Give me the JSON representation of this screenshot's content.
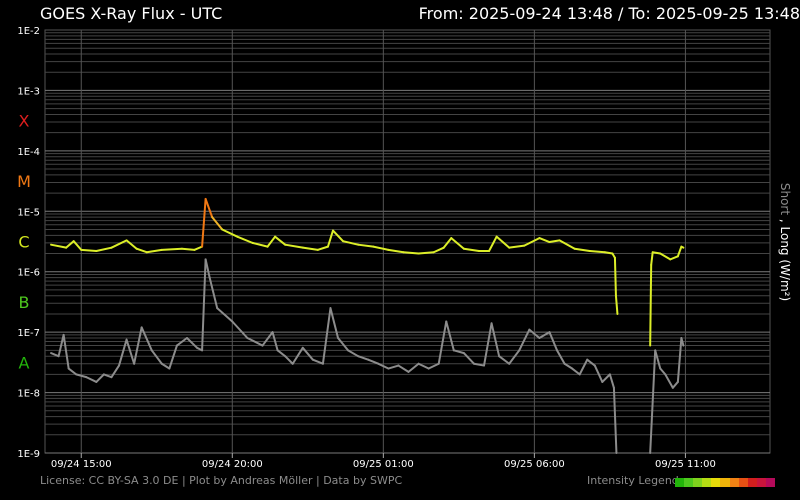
{
  "header": {
    "title": "GOES X-Ray Flux - UTC",
    "range": "From: 2025-09-24 13:48  /  To: 2025-09-25 13:48"
  },
  "footer": {
    "credits": "License: CC BY-SA 3.0 DE | Plot by Andreas Möller | Data by SWPC",
    "legend_label": "Intensity Legend",
    "legend_colors": [
      "#22b40a",
      "#4ec81e",
      "#7fd21e",
      "#b4dc14",
      "#e6dc0a",
      "#f0b40a",
      "#f08214",
      "#e65014",
      "#d21e1e",
      "#c8143c",
      "#b40a5a"
    ]
  },
  "chart_data": {
    "type": "line",
    "title": "GOES X-Ray Flux - UTC",
    "xlabel": "",
    "ylabel": "Short , Long (W/m²)",
    "ylabel_short": "Short",
    "ylabel_rest": " , Long (W/m²)",
    "yscale": "log",
    "ylim": [
      1e-09,
      0.01
    ],
    "xlim": [
      "2025-09-24 13:48",
      "2025-09-25 13:48"
    ],
    "grid": true,
    "y_ticks": [
      "1E-9",
      "1E-8",
      "1E-7",
      "1E-6",
      "1E-5",
      "1E-4",
      "1E-3",
      "1E-2"
    ],
    "x_ticks": [
      {
        "t": "2025-09-24 15:00",
        "label": "09/24 15:00"
      },
      {
        "t": "2025-09-24 20:00",
        "label": "09/24 20:00"
      },
      {
        "t": "2025-09-25 01:00",
        "label": "09/25 01:00"
      },
      {
        "t": "2025-09-25 06:00",
        "label": "09/25 06:00"
      },
      {
        "t": "2025-09-25 11:00",
        "label": "09/25 11:00"
      }
    ],
    "flare_classes": [
      {
        "label": "A",
        "color": "#22b40a",
        "decade": -7.5
      },
      {
        "label": "B",
        "color": "#4ec81e",
        "decade": -6.5
      },
      {
        "label": "C",
        "color": "#d2e61e",
        "decade": -5.5
      },
      {
        "label": "M",
        "color": "#f07814",
        "decade": -4.5
      },
      {
        "label": "X",
        "color": "#dc1e1e",
        "decade": -3.5
      }
    ],
    "series": [
      {
        "name": "Long",
        "color": "#e6f01e",
        "x": [
          "2025-09-24 14:00",
          "2025-09-24 14:30",
          "2025-09-24 14:45",
          "2025-09-24 15:00",
          "2025-09-24 15:30",
          "2025-09-24 16:00",
          "2025-09-24 16:30",
          "2025-09-24 16:50",
          "2025-09-24 17:10",
          "2025-09-24 17:40",
          "2025-09-24 18:20",
          "2025-09-24 18:45",
          "2025-09-24 19:00",
          "2025-09-24 19:07",
          "2025-09-24 19:20",
          "2025-09-24 19:40",
          "2025-09-24 20:10",
          "2025-09-24 20:40",
          "2025-09-24 21:10",
          "2025-09-24 21:25",
          "2025-09-24 21:45",
          "2025-09-24 22:20",
          "2025-09-24 22:50",
          "2025-09-24 23:10",
          "2025-09-24 23:20",
          "2025-09-24 23:40",
          "2025-09-25 00:10",
          "2025-09-25 00:40",
          "2025-09-25 01:10",
          "2025-09-25 01:40",
          "2025-09-25 02:10",
          "2025-09-25 02:40",
          "2025-09-25 03:00",
          "2025-09-25 03:15",
          "2025-09-25 03:40",
          "2025-09-25 04:10",
          "2025-09-25 04:30",
          "2025-09-25 04:45",
          "2025-09-25 05:10",
          "2025-09-25 05:40",
          "2025-09-25 06:10",
          "2025-09-25 06:30",
          "2025-09-25 06:50",
          "2025-09-25 07:20",
          "2025-09-25 07:50",
          "2025-09-25 08:20",
          "2025-09-25 08:35",
          "2025-09-25 08:40",
          "2025-09-25 08:42",
          "2025-09-25 08:45",
          "null",
          "2025-09-25 09:50",
          "2025-09-25 09:52",
          "2025-09-25 09:55",
          "2025-09-25 10:10",
          "2025-09-25 10:30",
          "2025-09-25 10:45",
          "2025-09-25 10:52",
          "2025-09-25 10:56"
        ],
        "y": [
          2.8e-06,
          2.5e-06,
          3.2e-06,
          2.3e-06,
          2.2e-06,
          2.5e-06,
          3.3e-06,
          2.4e-06,
          2.1e-06,
          2.3e-06,
          2.4e-06,
          2.3e-06,
          2.6e-06,
          1.6e-05,
          8e-06,
          5e-06,
          3.8e-06,
          3e-06,
          2.6e-06,
          3.8e-06,
          2.8e-06,
          2.5e-06,
          2.3e-06,
          2.6e-06,
          4.8e-06,
          3.2e-06,
          2.8e-06,
          2.6e-06,
          2.3e-06,
          2.1e-06,
          2e-06,
          2.1e-06,
          2.5e-06,
          3.6e-06,
          2.4e-06,
          2.2e-06,
          2.2e-06,
          3.8e-06,
          2.5e-06,
          2.7e-06,
          3.6e-06,
          3.1e-06,
          3.3e-06,
          2.4e-06,
          2.2e-06,
          2.1e-06,
          2e-06,
          1.7e-06,
          4e-07,
          2e-07,
          null,
          6e-08,
          1.3e-06,
          2.1e-06,
          2e-06,
          1.6e-06,
          1.8e-06,
          2.6e-06,
          2.5e-06
        ]
      },
      {
        "name": "Short",
        "color": "#8c8c8c",
        "x": [
          "2025-09-24 14:00",
          "2025-09-24 14:15",
          "2025-09-24 14:25",
          "2025-09-24 14:35",
          "2025-09-24 14:50",
          "2025-09-24 15:10",
          "2025-09-24 15:30",
          "2025-09-24 15:45",
          "2025-09-24 16:00",
          "2025-09-24 16:15",
          "2025-09-24 16:30",
          "2025-09-24 16:45",
          "2025-09-24 17:00",
          "2025-09-24 17:20",
          "2025-09-24 17:40",
          "2025-09-24 17:55",
          "2025-09-24 18:10",
          "2025-09-24 18:30",
          "2025-09-24 18:50",
          "2025-09-24 19:00",
          "2025-09-24 19:07",
          "2025-09-24 19:15",
          "2025-09-24 19:30",
          "2025-09-24 20:00",
          "2025-09-24 20:30",
          "2025-09-24 21:00",
          "2025-09-24 21:20",
          "2025-09-24 21:30",
          "2025-09-24 21:45",
          "2025-09-24 22:00",
          "2025-09-24 22:20",
          "2025-09-24 22:40",
          "2025-09-24 23:00",
          "2025-09-24 23:15",
          "2025-09-24 23:30",
          "2025-09-24 23:50",
          "2025-09-25 00:10",
          "2025-09-25 00:30",
          "2025-09-25 00:50",
          "2025-09-25 01:10",
          "2025-09-25 01:30",
          "2025-09-25 01:50",
          "2025-09-25 02:10",
          "2025-09-25 02:30",
          "2025-09-25 02:50",
          "2025-09-25 03:05",
          "2025-09-25 03:20",
          "2025-09-25 03:40",
          "2025-09-25 04:00",
          "2025-09-25 04:20",
          "2025-09-25 04:35",
          "2025-09-25 04:50",
          "2025-09-25 05:10",
          "2025-09-25 05:30",
          "2025-09-25 05:50",
          "2025-09-25 06:10",
          "2025-09-25 06:30",
          "2025-09-25 06:45",
          "2025-09-25 07:00",
          "2025-09-25 07:15",
          "2025-09-25 07:30",
          "2025-09-25 07:45",
          "2025-09-25 08:00",
          "2025-09-25 08:15",
          "2025-09-25 08:30",
          "2025-09-25 08:38",
          "2025-09-25 08:43",
          "null",
          "2025-09-25 09:50",
          "2025-09-25 10:00",
          "2025-09-25 10:10",
          "2025-09-25 10:20",
          "2025-09-25 10:35",
          "2025-09-25 10:45",
          "2025-09-25 10:52",
          "2025-09-25 10:56"
        ],
        "y": [
          4.5e-08,
          4e-08,
          9e-08,
          2.5e-08,
          2e-08,
          1.8e-08,
          1.5e-08,
          2e-08,
          1.8e-08,
          2.8e-08,
          7.5e-08,
          3e-08,
          1.2e-07,
          5e-08,
          3e-08,
          2.5e-08,
          6e-08,
          8e-08,
          5.5e-08,
          5e-08,
          1.6e-06,
          8e-07,
          2.5e-07,
          1.5e-07,
          8e-08,
          6e-08,
          1e-07,
          5e-08,
          4e-08,
          3e-08,
          5.5e-08,
          3.5e-08,
          3e-08,
          2.5e-07,
          8e-08,
          5e-08,
          4e-08,
          3.5e-08,
          3e-08,
          2.5e-08,
          2.8e-08,
          2.2e-08,
          3e-08,
          2.5e-08,
          3e-08,
          1.5e-07,
          5e-08,
          4.5e-08,
          3e-08,
          2.8e-08,
          1.4e-07,
          4e-08,
          3e-08,
          5e-08,
          1.1e-07,
          8e-08,
          1e-07,
          5e-08,
          3e-08,
          2.5e-08,
          2e-08,
          3.5e-08,
          2.8e-08,
          1.5e-08,
          2e-08,
          1.2e-08,
          1e-09,
          null,
          1e-09,
          5e-08,
          2.5e-08,
          2e-08,
          1.2e-08,
          1.5e-08,
          8e-08,
          6e-08
        ]
      }
    ]
  }
}
